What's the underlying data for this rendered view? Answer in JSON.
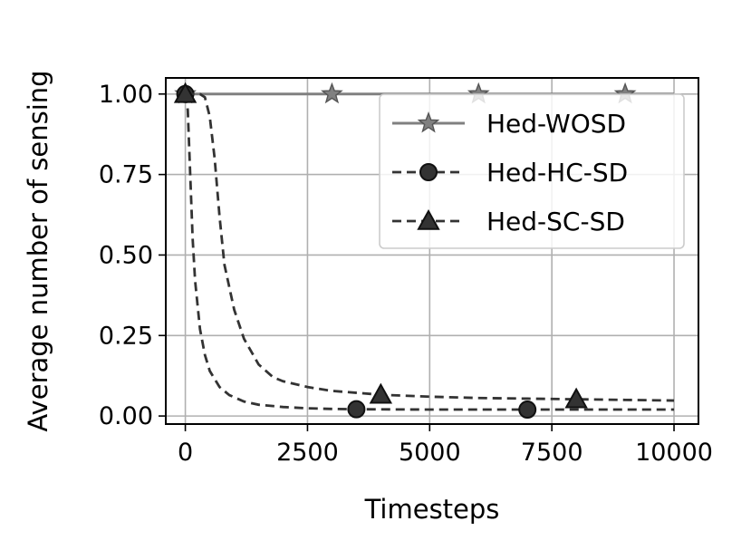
{
  "chart_data": {
    "type": "line",
    "title": "",
    "xlabel": "Timesteps",
    "ylabel": "Average number of sensing",
    "xlim": [
      -400,
      10500
    ],
    "ylim": [
      -0.025,
      1.05
    ],
    "xticks": [
      0,
      2500,
      5000,
      7500,
      10000
    ],
    "xtick_labels": [
      "0",
      "2500",
      "5000",
      "7500",
      "10000"
    ],
    "yticks": [
      0.0,
      0.25,
      0.5,
      0.75,
      1.0
    ],
    "ytick_labels": [
      "0.00",
      "0.25",
      "0.50",
      "0.75",
      "1.00"
    ],
    "grid": true,
    "legend_position": "top-right",
    "series": [
      {
        "name": "Hed-WOSD",
        "line_style": "solid",
        "marker": "star",
        "color": "#808080",
        "x": [
          0,
          1000,
          2000,
          3000,
          4000,
          5000,
          6000,
          7000,
          8000,
          9000,
          10000
        ],
        "y": [
          1.0,
          1.0,
          1.0,
          1.0,
          1.0,
          1.0,
          1.0,
          1.0,
          1.0,
          1.0,
          1.0
        ],
        "marker_x": [
          0,
          3000,
          6000,
          9000
        ],
        "marker_y": [
          1.0,
          1.0,
          1.0,
          1.0
        ]
      },
      {
        "name": "Hed-HC-SD",
        "line_style": "dashed",
        "marker": "circle",
        "color": "#333333",
        "x": [
          0,
          50,
          100,
          150,
          200,
          300,
          400,
          500,
          700,
          900,
          1200,
          1500,
          2000,
          2500,
          3000,
          3500,
          5000,
          7000,
          10000
        ],
        "y": [
          1.0,
          0.95,
          0.75,
          0.55,
          0.42,
          0.27,
          0.19,
          0.14,
          0.09,
          0.065,
          0.045,
          0.035,
          0.028,
          0.024,
          0.022,
          0.021,
          0.02,
          0.02,
          0.02
        ],
        "marker_x": [
          0,
          3500,
          7000
        ],
        "marker_y": [
          1.0,
          0.021,
          0.02
        ]
      },
      {
        "name": "Hed-SC-SD",
        "line_style": "dashed",
        "marker": "triangle",
        "color": "#333333",
        "x": [
          0,
          100,
          200,
          300,
          400,
          500,
          600,
          700,
          800,
          1000,
          1200,
          1500,
          1800,
          2000,
          2500,
          3000,
          4000,
          5000,
          6000,
          7000,
          8000,
          9000,
          10000
        ],
        "y": [
          1.0,
          1.0,
          1.0,
          1.0,
          0.99,
          0.93,
          0.8,
          0.62,
          0.47,
          0.33,
          0.24,
          0.16,
          0.12,
          0.108,
          0.09,
          0.078,
          0.066,
          0.06,
          0.056,
          0.054,
          0.052,
          0.05,
          0.048
        ],
        "marker_x": [
          0,
          4000,
          8000
        ],
        "marker_y": [
          1.0,
          0.066,
          0.052
        ]
      }
    ]
  }
}
